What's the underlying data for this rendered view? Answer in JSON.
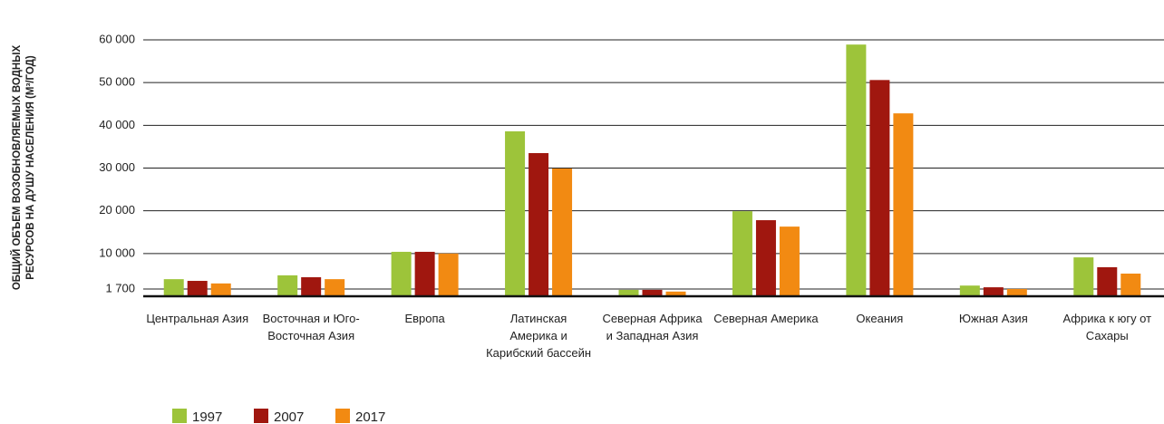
{
  "chart_data": {
    "type": "bar",
    "y_axis_label": "ОБЩИЙ ОБЪЕМ ВОЗОБНОВЛЯЕМЫХ ВОДНЫХ РЕСУРСОВ НА ДУШУ НАСЕЛЕНИЯ (М³/ГОД)",
    "categories": [
      "Центральная Азия",
      "Восточная и Юго-Восточная Азия",
      "Европа",
      "Латинская Америка и Карибский бассейн",
      "Северная Африка и Западная Азия",
      "Северная Америка",
      "Океания",
      "Южная Азия",
      "Африка к югу от Сахары"
    ],
    "series": [
      {
        "name": "1997",
        "color": "#9dc43a",
        "values": [
          4000,
          4900,
          10400,
          38600,
          1500,
          19900,
          58900,
          2500,
          9100
        ]
      },
      {
        "name": "2007",
        "color": "#a0170f",
        "values": [
          3600,
          4450,
          10400,
          33500,
          1500,
          17800,
          50600,
          2100,
          6800
        ]
      },
      {
        "name": "2017",
        "color": "#f28a12",
        "values": [
          3000,
          4000,
          10000,
          29900,
          1100,
          16300,
          42800,
          1700,
          5300
        ]
      }
    ],
    "ylim": [
      0,
      60000
    ],
    "yticks": [
      {
        "value": 1700,
        "label": "1 700"
      },
      {
        "value": 10000,
        "label": "10 000"
      },
      {
        "value": 20000,
        "label": "20 000"
      },
      {
        "value": 30000,
        "label": "30 000"
      },
      {
        "value": 40000,
        "label": "40 000"
      },
      {
        "value": 50000,
        "label": "50 000"
      },
      {
        "value": 60000,
        "label": "60 000"
      }
    ],
    "grid": true
  }
}
